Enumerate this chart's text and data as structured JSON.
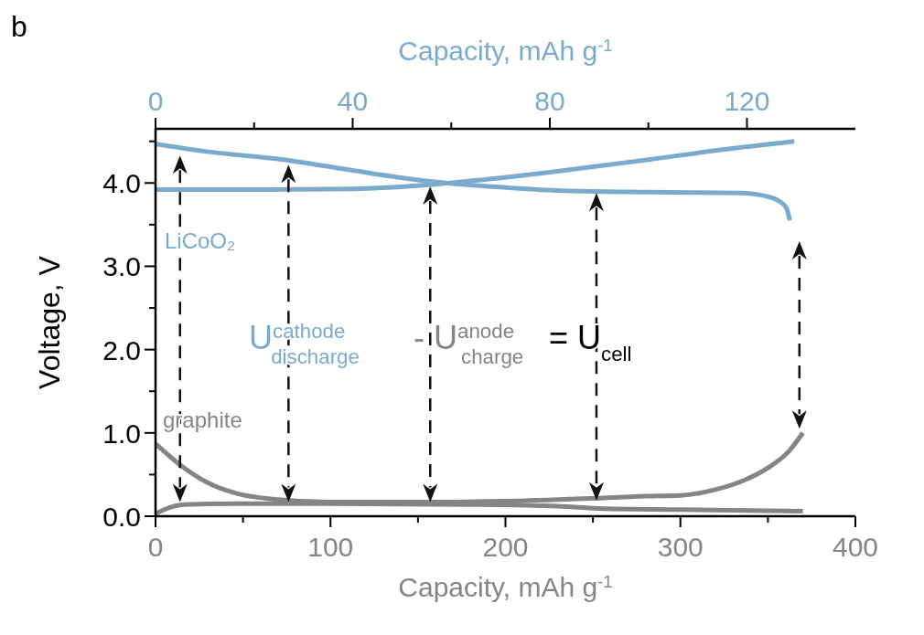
{
  "chart_data": {
    "type": "line",
    "xlabel": "Capacity, mAh g$^{-1}$",
    "x2label": "Capacity, mAh g$^{-1}$",
    "ylabel": "Voltage, V",
    "xlim": [
      0,
      400
    ],
    "xticks": [
      0,
      {
        "value": 50,
        "label": null
      },
      100,
      {
        "value": 150,
        "label": null
      },
      200,
      {
        "value": 250,
        "label": null
      },
      300,
      {
        "value": 350,
        "label": null
      },
      400
    ],
    "x2lim": [
      0,
      142
    ],
    "x2ticks": [
      0,
      {
        "value": 20,
        "label": null
      },
      40,
      {
        "value": 60,
        "label": null
      },
      80,
      {
        "value": 100,
        "label": null
      },
      120
    ],
    "ylim": [
      0,
      4.65
    ],
    "yticks": [
      {
        "value": 0,
        "label": "0.0"
      },
      {
        "value": 0.5,
        "label": null
      },
      {
        "value": 1,
        "label": "1.0"
      },
      {
        "value": 1.5,
        "label": null
      },
      {
        "value": 2,
        "label": "2.0"
      },
      {
        "value": 2.5,
        "label": null
      },
      {
        "value": 3,
        "label": "3.0"
      },
      {
        "value": 3.5,
        "label": null
      },
      {
        "value": 4,
        "label": "4.0"
      },
      {
        "value": 4.5,
        "label": null
      }
    ],
    "marker": "none",
    "line_style": "solid",
    "series": [
      {
        "color": "#7aabcd",
        "axis": "x2",
        "x": [
          0,
          10,
          26,
          40,
          55.6,
          70,
          81.5,
          100,
          118.5,
          124,
          126,
          128,
          128.7
        ],
        "values": [
          4.47,
          4.38,
          4.28,
          4.15,
          4.02,
          3.95,
          3.91,
          3.89,
          3.88,
          3.84,
          3.8,
          3.7,
          3.55
        ]
      },
      {
        "color": "#7aabcd",
        "axis": "x2",
        "x": [
          0,
          20,
          40,
          53.7,
          65,
          81.5,
          100,
          115,
          129.6
        ],
        "values": [
          3.92,
          3.92,
          3.93,
          3.97,
          4.03,
          4.14,
          4.28,
          4.4,
          4.5
        ]
      },
      {
        "color": "#858585",
        "x": [
          0,
          15,
          30,
          47,
          70,
          99,
          150,
          200,
          256,
          280,
          300,
          320,
          335,
          350,
          362,
          370
        ],
        "values": [
          0.87,
          0.6,
          0.4,
          0.27,
          0.2,
          0.17,
          0.17,
          0.18,
          0.22,
          0.24,
          0.25,
          0.32,
          0.42,
          0.58,
          0.78,
          1.0
        ]
      },
      {
        "color": "#858585",
        "x": [
          0,
          5,
          16,
          50,
          99,
          180,
          230,
          256,
          300,
          370
        ],
        "values": [
          0.03,
          0.08,
          0.14,
          0.15,
          0.15,
          0.14,
          0.12,
          0.09,
          0.08,
          0.06
        ]
      }
    ],
    "annotations": [
      "b",
      "LiCoO₂",
      "graphite",
      "U$^{cathode}$$_{discharge}$",
      "- U$^{anode}$$_{charge}$",
      "= U$_{cell}$"
    ]
  }
}
